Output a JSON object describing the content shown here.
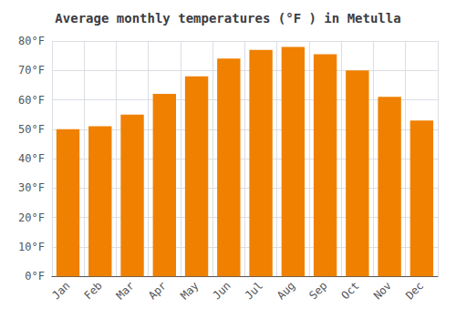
{
  "chart_data": {
    "type": "bar",
    "title": "Average monthly temperatures (°F ) in Metulla",
    "categories": [
      "Jan",
      "Feb",
      "Mar",
      "Apr",
      "May",
      "Jun",
      "Jul",
      "Aug",
      "Sep",
      "Oct",
      "Nov",
      "Dec"
    ],
    "values": [
      50,
      51,
      55,
      62,
      68,
      74,
      77,
      78,
      75.5,
      70,
      61,
      53
    ],
    "color": "#F08000",
    "ylim": [
      0,
      80
    ],
    "yticks": [
      {
        "value": 0,
        "label": "0°F"
      },
      {
        "value": 10,
        "label": "10°F"
      },
      {
        "value": 20,
        "label": "20°F"
      },
      {
        "value": 30,
        "label": "30°F"
      },
      {
        "value": 40,
        "label": "40°F"
      },
      {
        "value": 50,
        "label": "50°F"
      },
      {
        "value": 60,
        "label": "60°F"
      },
      {
        "value": 70,
        "label": "70°F"
      },
      {
        "value": 80,
        "label": "80°F"
      }
    ],
    "grid": true
  }
}
